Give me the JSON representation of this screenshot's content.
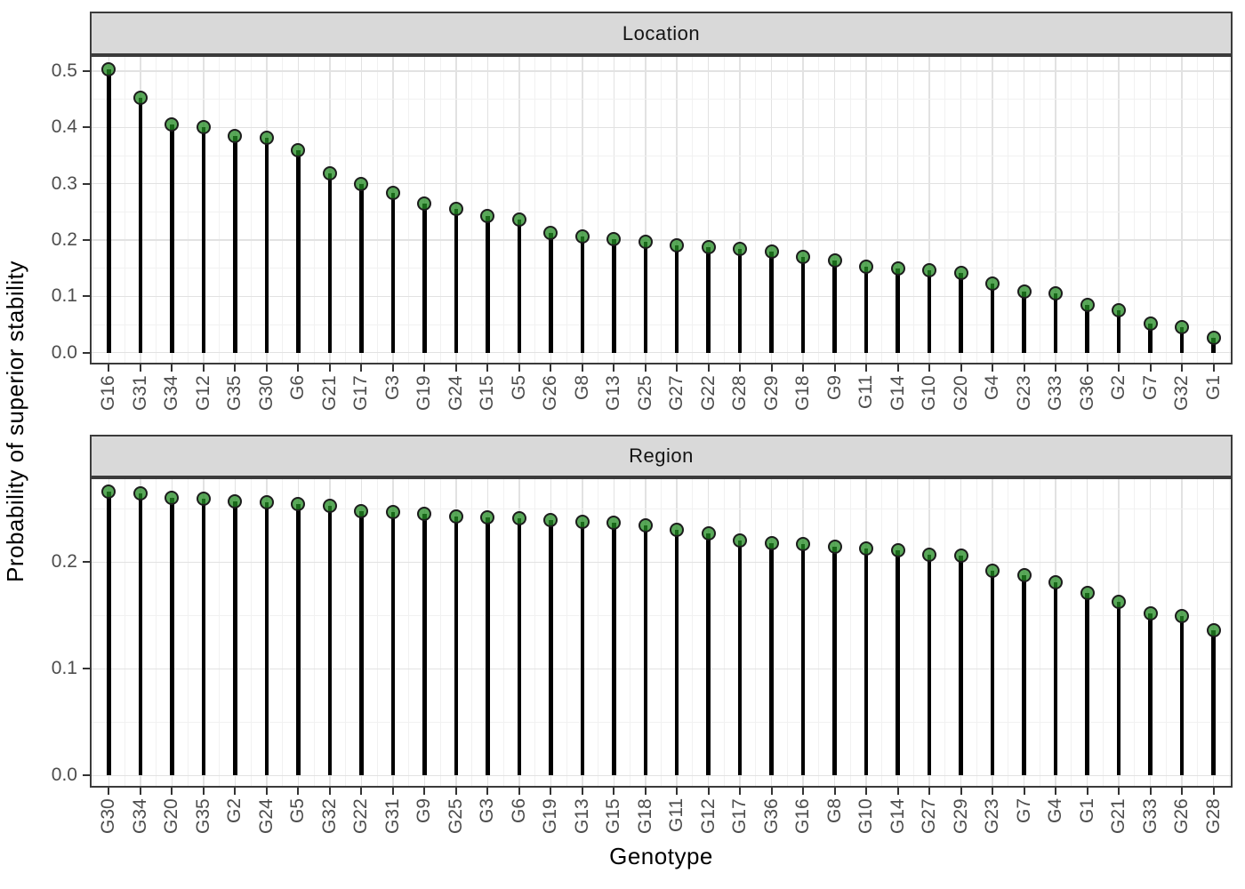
{
  "figure": {
    "y_axis_title": "Probability of superior stability",
    "x_axis_title": "Genotype"
  },
  "chart_data": {
    "type": "bar",
    "style": "lollipop (stem from 0 with circular point marker)",
    "title": "",
    "xlabel": "Genotype",
    "ylabel": "Probability of superior stability",
    "legend_position": "none",
    "grid": true,
    "facets": [
      {
        "label": "Location",
        "categories": [
          "G16",
          "G31",
          "G34",
          "G12",
          "G35",
          "G30",
          "G6",
          "G21",
          "G17",
          "G3",
          "G19",
          "G24",
          "G15",
          "G5",
          "G26",
          "G8",
          "G13",
          "G25",
          "G27",
          "G22",
          "G28",
          "G29",
          "G18",
          "G9",
          "G11",
          "G14",
          "G10",
          "G20",
          "G4",
          "G23",
          "G33",
          "G36",
          "G2",
          "G7",
          "G32",
          "G1"
        ],
        "values": [
          0.503,
          0.453,
          0.405,
          0.4,
          0.385,
          0.381,
          0.359,
          0.318,
          0.299,
          0.284,
          0.264,
          0.255,
          0.242,
          0.237,
          0.213,
          0.206,
          0.202,
          0.197,
          0.191,
          0.188,
          0.184,
          0.179,
          0.17,
          0.164,
          0.153,
          0.15,
          0.146,
          0.142,
          0.123,
          0.109,
          0.106,
          0.084,
          0.075,
          0.051,
          0.046,
          0.026
        ],
        "y_ticks": [
          0.0,
          0.1,
          0.2,
          0.3,
          0.4,
          0.5
        ],
        "y_minor_ticks": [
          0.05,
          0.15,
          0.25,
          0.35,
          0.45
        ],
        "ylim": [
          -0.021,
          0.5284
        ]
      },
      {
        "label": "Region",
        "categories": [
          "G30",
          "G34",
          "G20",
          "G35",
          "G2",
          "G24",
          "G5",
          "G32",
          "G22",
          "G31",
          "G9",
          "G25",
          "G3",
          "G6",
          "G19",
          "G13",
          "G15",
          "G18",
          "G11",
          "G12",
          "G17",
          "G36",
          "G16",
          "G8",
          "G10",
          "G14",
          "G27",
          "G29",
          "G23",
          "G7",
          "G4",
          "G1",
          "G21",
          "G33",
          "G26",
          "G28"
        ],
        "values": [
          0.266,
          0.264,
          0.26,
          0.259,
          0.257,
          0.256,
          0.254,
          0.253,
          0.248,
          0.247,
          0.245,
          0.243,
          0.242,
          0.241,
          0.239,
          0.238,
          0.237,
          0.234,
          0.23,
          0.227,
          0.22,
          0.218,
          0.217,
          0.214,
          0.213,
          0.211,
          0.207,
          0.206,
          0.192,
          0.188,
          0.181,
          0.171,
          0.163,
          0.152,
          0.149,
          0.136
        ],
        "y_ticks": [
          0.0,
          0.1,
          0.2
        ],
        "y_minor_ticks": [
          0.05,
          0.15,
          0.25
        ],
        "ylim": [
          -0.0114,
          0.2794
        ]
      }
    ]
  },
  "style_colors": {
    "point_fill": "#228B22",
    "point_fill_alpha": 0.75,
    "point_border": "#1C1C1C",
    "stem_color": "#000000",
    "strip_background": "#D9D9D9",
    "panel_border": "#3B3B3B",
    "grid_major": "#E2E2E2",
    "grid_minor": "#F1F1F1",
    "tick_label_color": "#4D4D4D"
  }
}
